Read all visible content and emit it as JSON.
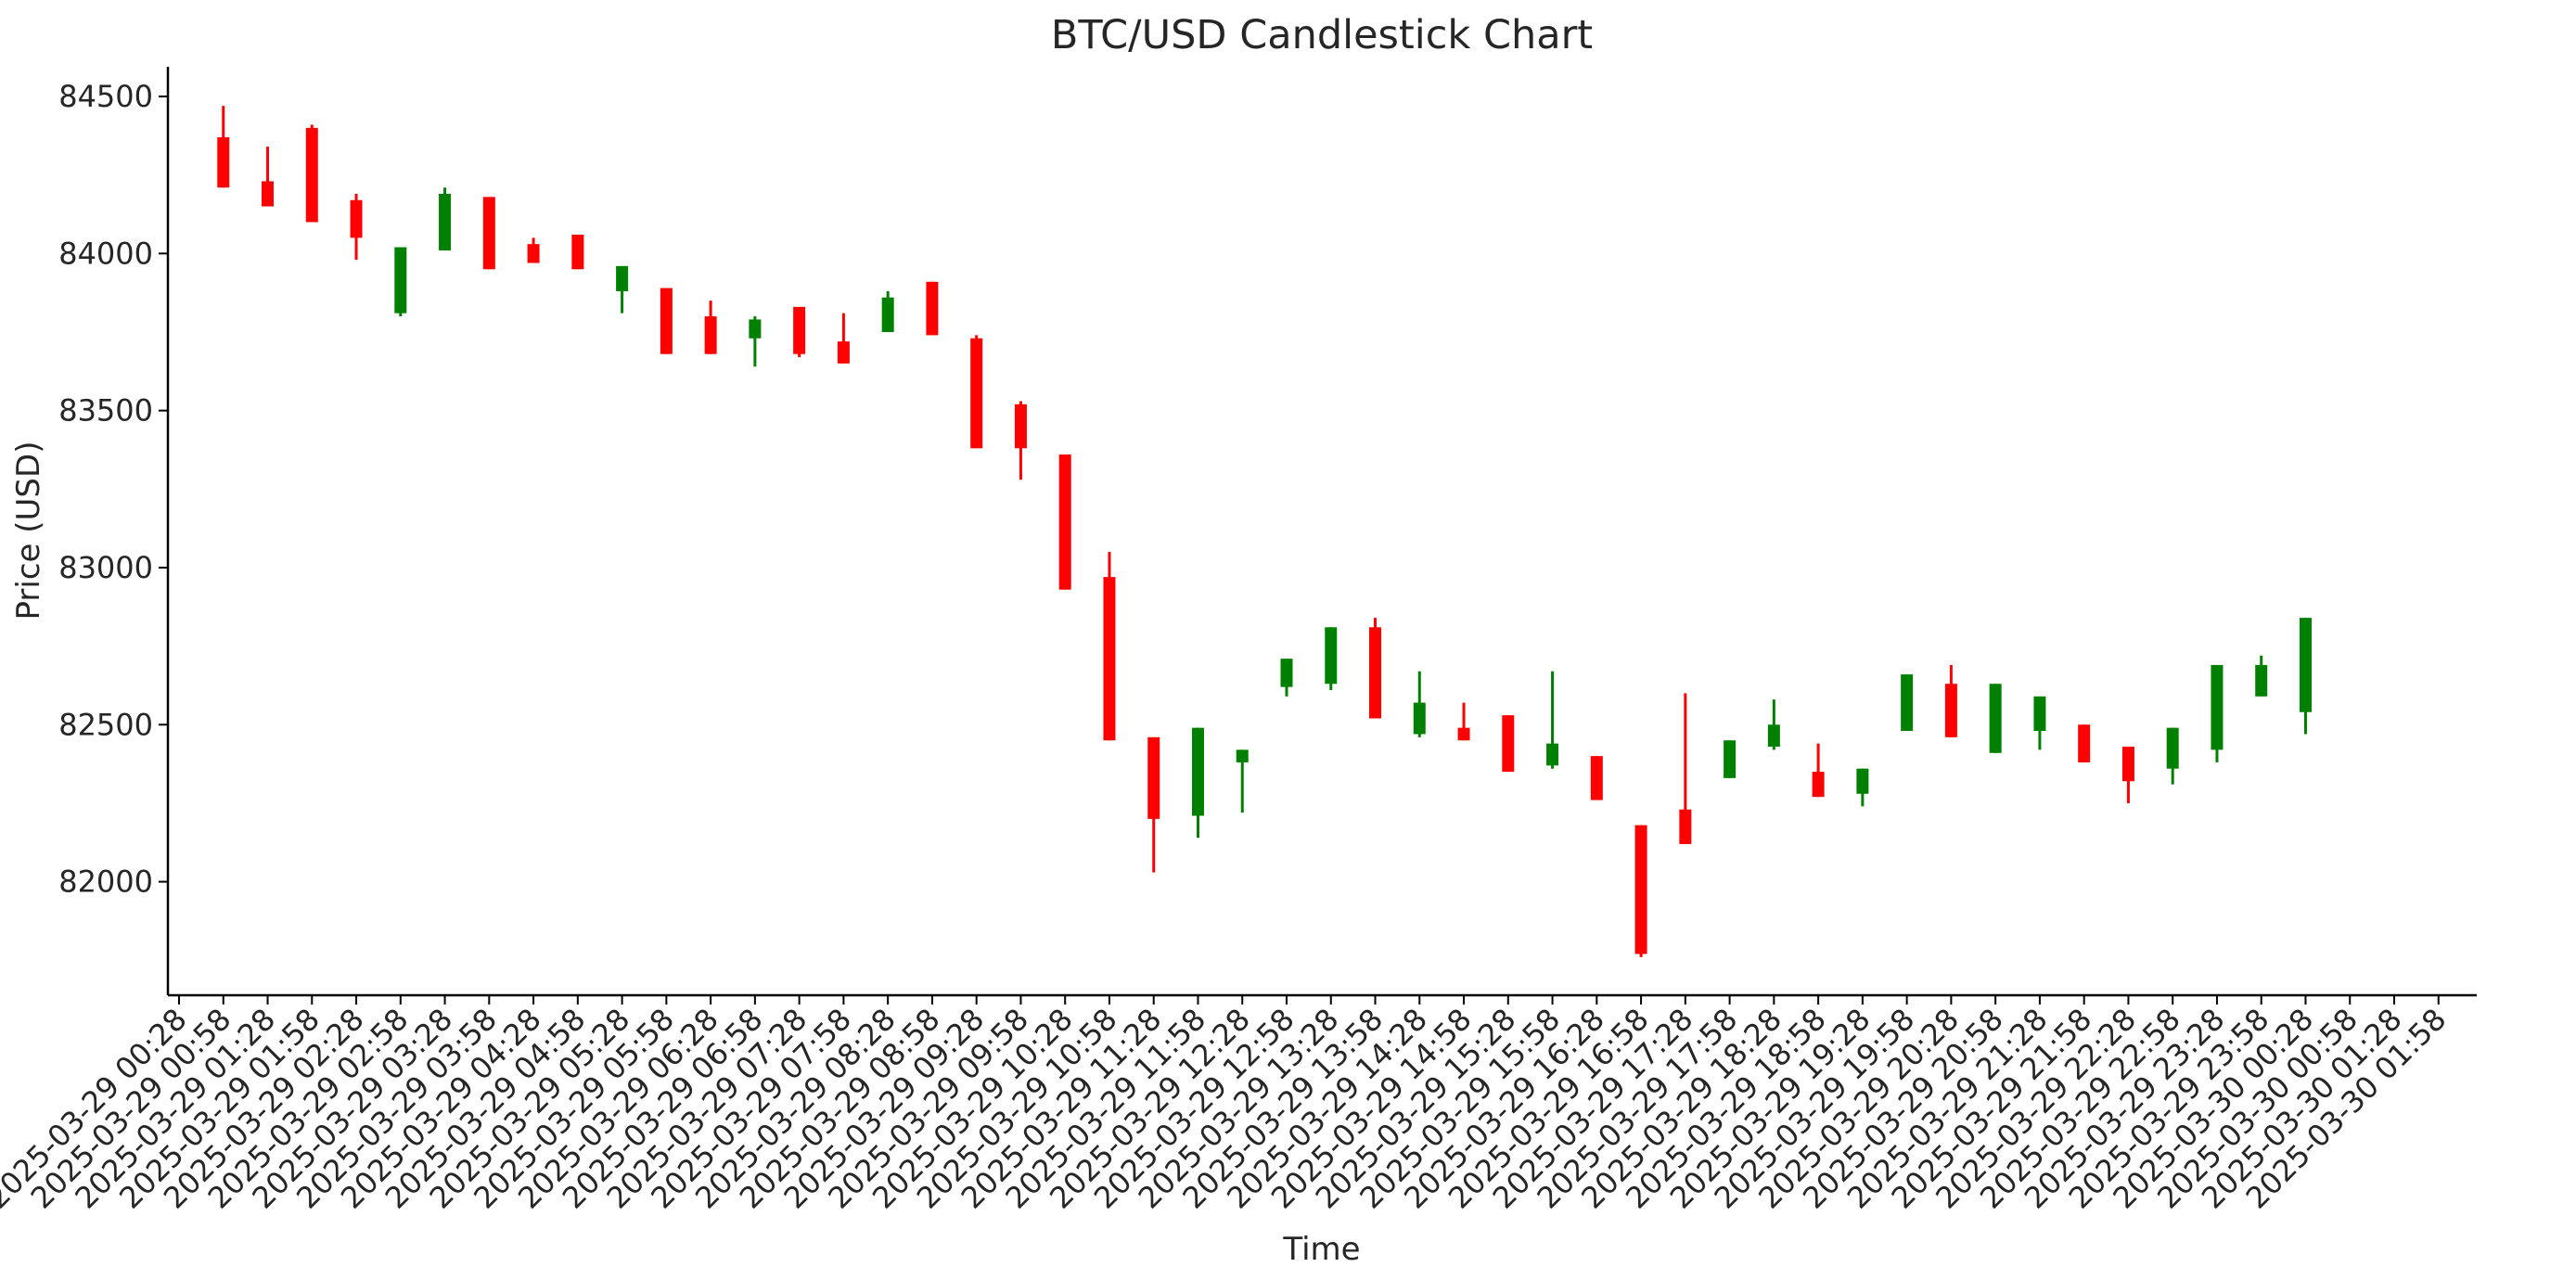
{
  "chart_data": {
    "type": "candlestick",
    "title": "BTC/USD Candlestick Chart",
    "xlabel": "Time",
    "ylabel": "Price (USD)",
    "ylim": [
      81650,
      84600
    ],
    "yticks": [
      82000,
      82500,
      83000,
      83500,
      84000,
      84500
    ],
    "grid": false,
    "legend": "none",
    "colors": {
      "up": "#008000",
      "down": "#ff0000"
    },
    "xticks": [
      "2025-03-29 00:28",
      "2025-03-29 00:58",
      "2025-03-29 01:28",
      "2025-03-29 01:58",
      "2025-03-29 02:28",
      "2025-03-29 02:58",
      "2025-03-29 03:28",
      "2025-03-29 03:58",
      "2025-03-29 04:28",
      "2025-03-29 04:58",
      "2025-03-29 05:28",
      "2025-03-29 05:58",
      "2025-03-29 06:28",
      "2025-03-29 06:58",
      "2025-03-29 07:28",
      "2025-03-29 07:58",
      "2025-03-29 08:28",
      "2025-03-29 08:58",
      "2025-03-29 09:28",
      "2025-03-29 09:58",
      "2025-03-29 10:28",
      "2025-03-29 10:58",
      "2025-03-29 11:28",
      "2025-03-29 11:58",
      "2025-03-29 12:28",
      "2025-03-29 12:58",
      "2025-03-29 13:28",
      "2025-03-29 13:58",
      "2025-03-29 14:28",
      "2025-03-29 14:58",
      "2025-03-29 15:28",
      "2025-03-29 15:58",
      "2025-03-29 16:28",
      "2025-03-29 16:58",
      "2025-03-29 17:28",
      "2025-03-29 17:58",
      "2025-03-29 18:28",
      "2025-03-29 18:58",
      "2025-03-29 19:28",
      "2025-03-29 19:58",
      "2025-03-29 20:28",
      "2025-03-29 20:58",
      "2025-03-29 21:28",
      "2025-03-29 21:58",
      "2025-03-29 22:28",
      "2025-03-29 22:58",
      "2025-03-29 23:28",
      "2025-03-29 23:58",
      "2025-03-30 00:28",
      "2025-03-30 00:58",
      "2025-03-30 01:28",
      "2025-03-30 01:58"
    ],
    "candles": [
      {
        "t": "2025-03-29 00:58",
        "open": 84370,
        "high": 84470,
        "low": 84210,
        "close": 84210
      },
      {
        "t": "2025-03-29 01:28",
        "open": 84230,
        "high": 84340,
        "low": 84150,
        "close": 84150
      },
      {
        "t": "2025-03-29 01:58",
        "open": 84400,
        "high": 84410,
        "low": 84100,
        "close": 84100
      },
      {
        "t": "2025-03-29 02:28",
        "open": 84170,
        "high": 84190,
        "low": 83980,
        "close": 84050
      },
      {
        "t": "2025-03-29 02:58",
        "open": 83810,
        "high": 84020,
        "low": 83800,
        "close": 84020
      },
      {
        "t": "2025-03-29 03:28",
        "open": 84010,
        "high": 84210,
        "low": 84010,
        "close": 84190
      },
      {
        "t": "2025-03-29 03:58",
        "open": 84180,
        "high": 84180,
        "low": 83950,
        "close": 83950
      },
      {
        "t": "2025-03-29 04:28",
        "open": 84030,
        "high": 84050,
        "low": 83970,
        "close": 83970
      },
      {
        "t": "2025-03-29 04:58",
        "open": 84060,
        "high": 84060,
        "low": 83950,
        "close": 83950
      },
      {
        "t": "2025-03-29 05:28",
        "open": 83880,
        "high": 83960,
        "low": 83810,
        "close": 83960
      },
      {
        "t": "2025-03-29 05:58",
        "open": 83890,
        "high": 83890,
        "low": 83680,
        "close": 83680
      },
      {
        "t": "2025-03-29 06:28",
        "open": 83800,
        "high": 83850,
        "low": 83680,
        "close": 83680
      },
      {
        "t": "2025-03-29 06:58",
        "open": 83730,
        "high": 83800,
        "low": 83640,
        "close": 83790
      },
      {
        "t": "2025-03-29 07:28",
        "open": 83830,
        "high": 83830,
        "low": 83670,
        "close": 83680
      },
      {
        "t": "2025-03-29 07:58",
        "open": 83720,
        "high": 83810,
        "low": 83650,
        "close": 83650
      },
      {
        "t": "2025-03-29 08:28",
        "open": 83750,
        "high": 83880,
        "low": 83750,
        "close": 83860
      },
      {
        "t": "2025-03-29 08:58",
        "open": 83910,
        "high": 83910,
        "low": 83740,
        "close": 83740
      },
      {
        "t": "2025-03-29 09:28",
        "open": 83730,
        "high": 83740,
        "low": 83380,
        "close": 83380
      },
      {
        "t": "2025-03-29 09:58",
        "open": 83520,
        "high": 83530,
        "low": 83280,
        "close": 83380
      },
      {
        "t": "2025-03-29 10:28",
        "open": 83360,
        "high": 83360,
        "low": 82930,
        "close": 82930
      },
      {
        "t": "2025-03-29 10:58",
        "open": 82970,
        "high": 83050,
        "low": 82450,
        "close": 82450
      },
      {
        "t": "2025-03-29 11:28",
        "open": 82460,
        "high": 82460,
        "low": 82030,
        "close": 82200
      },
      {
        "t": "2025-03-29 11:58",
        "open": 82210,
        "high": 82490,
        "low": 82140,
        "close": 82490
      },
      {
        "t": "2025-03-29 12:28",
        "open": 82380,
        "high": 82420,
        "low": 82220,
        "close": 82420
      },
      {
        "t": "2025-03-29 12:58",
        "open": 82620,
        "high": 82710,
        "low": 82590,
        "close": 82710
      },
      {
        "t": "2025-03-29 13:28",
        "open": 82630,
        "high": 82810,
        "low": 82610,
        "close": 82810
      },
      {
        "t": "2025-03-29 13:58",
        "open": 82810,
        "high": 82840,
        "low": 82520,
        "close": 82520
      },
      {
        "t": "2025-03-29 14:28",
        "open": 82470,
        "high": 82670,
        "low": 82460,
        "close": 82570
      },
      {
        "t": "2025-03-29 14:58",
        "open": 82490,
        "high": 82570,
        "low": 82450,
        "close": 82450
      },
      {
        "t": "2025-03-29 15:28",
        "open": 82530,
        "high": 82530,
        "low": 82350,
        "close": 82350
      },
      {
        "t": "2025-03-29 15:58",
        "open": 82370,
        "high": 82670,
        "low": 82360,
        "close": 82440
      },
      {
        "t": "2025-03-29 16:28",
        "open": 82400,
        "high": 82400,
        "low": 82260,
        "close": 82260
      },
      {
        "t": "2025-03-29 16:58",
        "open": 82180,
        "high": 82180,
        "low": 81760,
        "close": 81770
      },
      {
        "t": "2025-03-29 17:28",
        "open": 82230,
        "high": 82600,
        "low": 82120,
        "close": 82120
      },
      {
        "t": "2025-03-29 17:58",
        "open": 82330,
        "high": 82450,
        "low": 82330,
        "close": 82450
      },
      {
        "t": "2025-03-29 18:28",
        "open": 82430,
        "high": 82580,
        "low": 82420,
        "close": 82500
      },
      {
        "t": "2025-03-29 18:58",
        "open": 82350,
        "high": 82440,
        "low": 82270,
        "close": 82270
      },
      {
        "t": "2025-03-29 19:28",
        "open": 82280,
        "high": 82360,
        "low": 82240,
        "close": 82360
      },
      {
        "t": "2025-03-29 19:58",
        "open": 82480,
        "high": 82660,
        "low": 82480,
        "close": 82660
      },
      {
        "t": "2025-03-29 20:28",
        "open": 82630,
        "high": 82690,
        "low": 82460,
        "close": 82460
      },
      {
        "t": "2025-03-29 20:58",
        "open": 82410,
        "high": 82630,
        "low": 82410,
        "close": 82630
      },
      {
        "t": "2025-03-29 21:28",
        "open": 82480,
        "high": 82590,
        "low": 82420,
        "close": 82590
      },
      {
        "t": "2025-03-29 21:58",
        "open": 82500,
        "high": 82500,
        "low": 82380,
        "close": 82380
      },
      {
        "t": "2025-03-29 22:28",
        "open": 82430,
        "high": 82430,
        "low": 82250,
        "close": 82320
      },
      {
        "t": "2025-03-29 22:58",
        "open": 82360,
        "high": 82490,
        "low": 82310,
        "close": 82490
      },
      {
        "t": "2025-03-29 23:28",
        "open": 82420,
        "high": 82690,
        "low": 82380,
        "close": 82690
      },
      {
        "t": "2025-03-29 23:58",
        "open": 82590,
        "high": 82720,
        "low": 82590,
        "close": 82690
      },
      {
        "t": "2025-03-30 00:28",
        "open": 82540,
        "high": 82840,
        "low": 82470,
        "close": 82840
      }
    ]
  }
}
